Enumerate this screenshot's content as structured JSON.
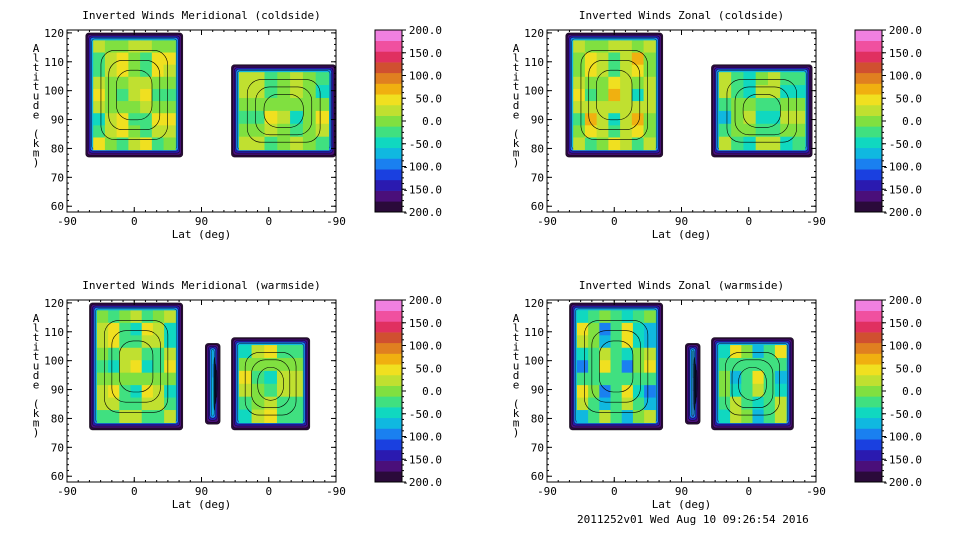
{
  "chart_data": [
    {
      "type": "heatmap",
      "title": "Inverted Winds Meridional (coldside)",
      "xlabel": "Lat (deg)",
      "ylabel": "Altitude (km)",
      "xticks": [
        "-90",
        "0",
        "90",
        "0",
        "-90"
      ],
      "xlim": [
        -90,
        270
      ],
      "yticks": [
        60,
        70,
        80,
        90,
        100,
        110,
        120
      ],
      "ylim": [
        58,
        121
      ],
      "colorbar": {
        "min": -200,
        "max": 200,
        "labels": [
          "200.0",
          "150.0",
          "100.0",
          "50.0",
          "0.0",
          "-50.0",
          "-100.0",
          "-150.0",
          "-200.0"
        ]
      },
      "regions": [
        {
          "x": [
            -65,
            65
          ],
          "y": [
            77,
            120
          ],
          "mean": 10,
          "peak": 60
        },
        {
          "x": [
            130,
            270
          ],
          "y": [
            77,
            109
          ],
          "mean": 0,
          "peak": 40
        }
      ]
    },
    {
      "type": "heatmap",
      "title": "Inverted Winds Zonal (coldside)",
      "xlabel": "Lat (deg)",
      "ylabel": "Altitude (km)",
      "xticks": [
        "-90",
        "0",
        "90",
        "0",
        "-90"
      ],
      "xlim": [
        -90,
        270
      ],
      "yticks": [
        60,
        70,
        80,
        90,
        100,
        110,
        120
      ],
      "ylim": [
        58,
        121
      ],
      "colorbar": {
        "min": -200,
        "max": 200,
        "labels": [
          "200.0",
          "150.0",
          "100.0",
          "50.0",
          "0.0",
          "-50.0",
          "-100.0",
          "-150.0",
          "-200.0"
        ]
      },
      "regions": [
        {
          "x": [
            -65,
            65
          ],
          "y": [
            77,
            120
          ],
          "mean": 15,
          "peak": 70
        },
        {
          "x": [
            130,
            265
          ],
          "y": [
            77,
            109
          ],
          "mean": -10,
          "peak": 40
        }
      ]
    },
    {
      "type": "heatmap",
      "title": "Inverted Winds Meridional (warmside)",
      "xlabel": "Lat (deg)",
      "ylabel": "Altitude (km)",
      "xticks": [
        "-90",
        "0",
        "90",
        "0",
        "-90"
      ],
      "xlim": [
        -90,
        270
      ],
      "yticks": [
        60,
        70,
        80,
        90,
        100,
        110,
        120
      ],
      "ylim": [
        58,
        121
      ],
      "colorbar": {
        "min": -200,
        "max": 200,
        "labels": [
          "200.0",
          "150.0",
          "100.0",
          "50.0",
          "0.0",
          "-50.0",
          "-100.0",
          "-150.0",
          "-200.0"
        ]
      },
      "regions": [
        {
          "x": [
            -60,
            65
          ],
          "y": [
            76,
            120
          ],
          "mean": 0,
          "peak": 60
        },
        {
          "x": [
            95,
            115
          ],
          "y": [
            78,
            106
          ],
          "mean": -80,
          "peak": -40
        },
        {
          "x": [
            130,
            235
          ],
          "y": [
            76,
            108
          ],
          "mean": 0,
          "peak": 45
        }
      ]
    },
    {
      "type": "heatmap",
      "title": "Inverted Winds Zonal (warmside)",
      "xlabel": "Lat (deg)",
      "ylabel": "Altitude (km)",
      "xticks": [
        "-90",
        "0",
        "90",
        "0",
        "-90"
      ],
      "xlim": [
        -90,
        270
      ],
      "yticks": [
        60,
        70,
        80,
        90,
        100,
        110,
        120
      ],
      "ylim": [
        58,
        121
      ],
      "colorbar": {
        "min": -200,
        "max": 200,
        "labels": [
          "200.0",
          "150.0",
          "100.0",
          "50.0",
          "0.0",
          "-50.0",
          "-100.0",
          "-150.0",
          "-200.0"
        ]
      },
      "regions": [
        {
          "x": [
            -60,
            65
          ],
          "y": [
            76,
            120
          ],
          "mean": -20,
          "peak": 60
        },
        {
          "x": [
            95,
            115
          ],
          "y": [
            78,
            106
          ],
          "mean": -180,
          "peak": -150
        },
        {
          "x": [
            130,
            240
          ],
          "y": [
            76,
            108
          ],
          "mean": -20,
          "peak": 40
        }
      ]
    }
  ],
  "colorscale": [
    "#2a0a3a",
    "#4a0f7a",
    "#2a1ab0",
    "#1a40e0",
    "#1a80f0",
    "#10b8e0",
    "#10d8c0",
    "#40e080",
    "#80e040",
    "#c0e030",
    "#f0e020",
    "#f0b010",
    "#e08020",
    "#d05030",
    "#e03060",
    "#f050a0",
    "#f080e0"
  ],
  "footer": "2011252v01 Wed Aug 10 09:26:54 2016"
}
